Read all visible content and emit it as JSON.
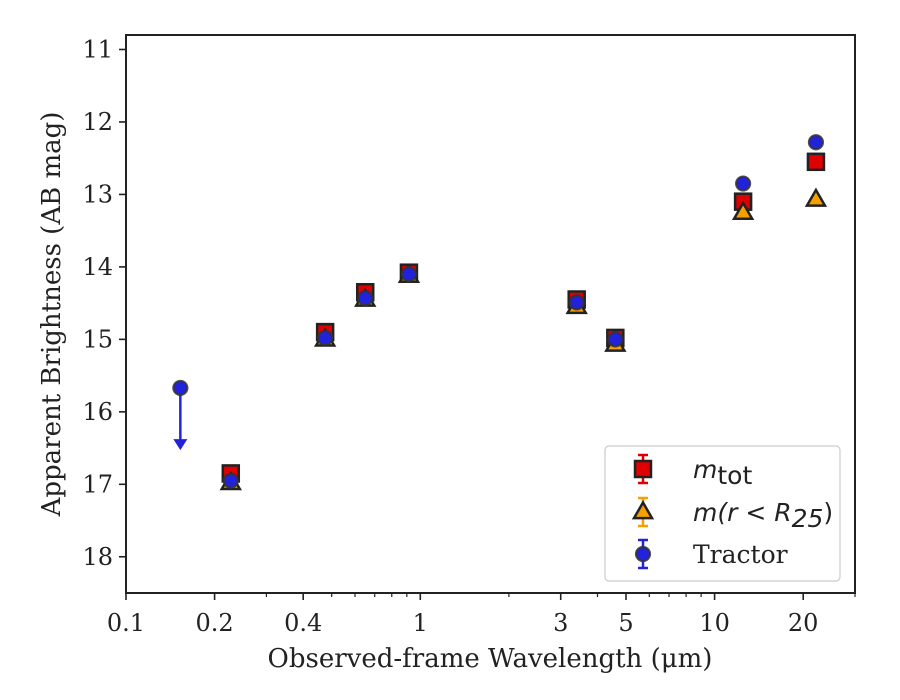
{
  "chart_data": {
    "type": "scatter",
    "xlabel": "Observed-frame Wavelength (μm)",
    "ylabel": "Apparent Brightness (AB mag)",
    "x_scale": "log",
    "xlim": [
      0.1,
      30
    ],
    "ylim": [
      18.5,
      10.8
    ],
    "y_inverted": true,
    "x_ticks": [
      {
        "value": 0.1,
        "label": "0.1"
      },
      {
        "value": 0.2,
        "label": "0.2"
      },
      {
        "value": 0.4,
        "label": "0.4"
      },
      {
        "value": 1,
        "label": "1"
      },
      {
        "value": 3,
        "label": "3"
      },
      {
        "value": 5,
        "label": "5"
      },
      {
        "value": 10,
        "label": "10"
      },
      {
        "value": 20,
        "label": "20"
      }
    ],
    "y_ticks": [
      {
        "value": 11,
        "label": "11"
      },
      {
        "value": 12,
        "label": "12"
      },
      {
        "value": 13,
        "label": "13"
      },
      {
        "value": 14,
        "label": "14"
      },
      {
        "value": 15,
        "label": "15"
      },
      {
        "value": 16,
        "label": "16"
      },
      {
        "value": 17,
        "label": "17"
      },
      {
        "value": 18,
        "label": "18"
      }
    ],
    "legend": {
      "position": "lower-right",
      "entries": [
        {
          "series": "m_tot",
          "sym": "m",
          "sub": "tot",
          "tail": ""
        },
        {
          "series": "m_r25",
          "sym": "m(r < R",
          "sub": "25",
          "tail": ")"
        },
        {
          "series": "tractor",
          "text": "Tractor"
        }
      ]
    },
    "series": [
      {
        "id": "m_tot",
        "marker": "square",
        "color": "#e00000",
        "errcolor": "#e00000",
        "x": [
          0.227,
          0.475,
          0.65,
          0.915,
          3.4,
          4.6,
          12.5,
          22.1
        ],
        "y": [
          16.85,
          14.9,
          14.35,
          14.08,
          14.45,
          14.98,
          13.1,
          12.55
        ]
      },
      {
        "id": "m_r25",
        "marker": "triangle",
        "color": "#f5a000",
        "errcolor": "#f5a000",
        "x": [
          0.227,
          0.475,
          0.65,
          0.915,
          3.4,
          4.6,
          12.5,
          22.1
        ],
        "y": [
          16.98,
          15.0,
          14.45,
          14.12,
          14.55,
          15.07,
          13.25,
          13.07
        ]
      },
      {
        "id": "tractor",
        "marker": "circle",
        "color": "#2222dd",
        "errcolor": "#2222dd",
        "x": [
          0.153,
          0.227,
          0.475,
          0.65,
          0.915,
          3.4,
          4.6,
          12.5,
          22.1
        ],
        "y": [
          15.67,
          16.95,
          14.98,
          14.43,
          14.1,
          14.49,
          15.0,
          12.85,
          12.28
        ],
        "upper_limit": [
          true,
          false,
          false,
          false,
          false,
          false,
          false,
          false,
          false
        ],
        "limit_arrow_to": 16.5
      }
    ]
  }
}
